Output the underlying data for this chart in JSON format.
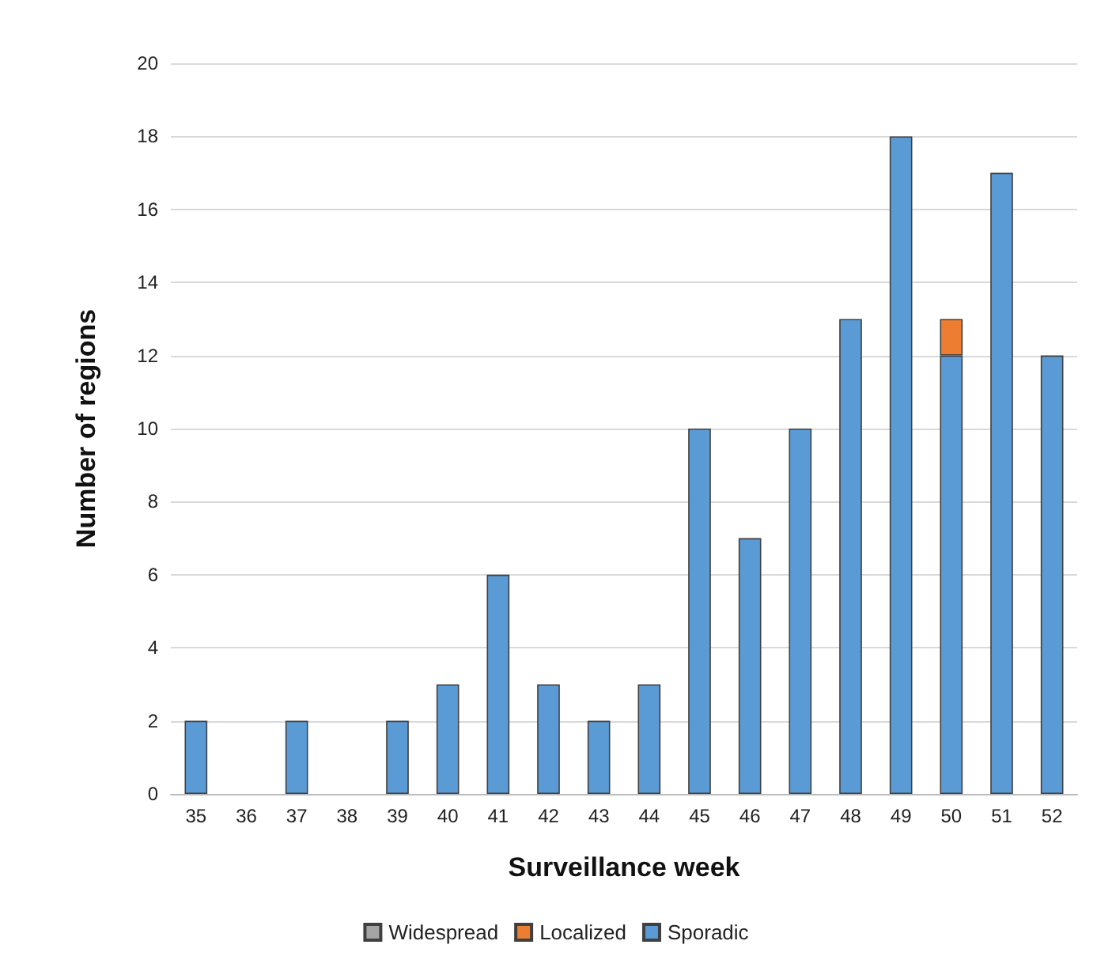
{
  "chart_data": {
    "type": "bar",
    "xlabel": "Surveillance week",
    "ylabel": "Number of regions",
    "categories": [
      "35",
      "36",
      "37",
      "38",
      "39",
      "40",
      "41",
      "42",
      "43",
      "44",
      "45",
      "46",
      "47",
      "48",
      "49",
      "50",
      "51",
      "52"
    ],
    "stacked": true,
    "series": [
      {
        "name": "Sporadic",
        "color": "#5b9bd5",
        "values": [
          2,
          0,
          2,
          0,
          2,
          3,
          6,
          3,
          2,
          3,
          10,
          7,
          10,
          13,
          18,
          12,
          17,
          12
        ]
      },
      {
        "name": "Localized",
        "color": "#ed7d31",
        "values": [
          0,
          0,
          0,
          0,
          0,
          0,
          0,
          0,
          0,
          0,
          0,
          0,
          0,
          0,
          0,
          1,
          0,
          0
        ]
      },
      {
        "name": "Widespread",
        "color": "#a5a5a5",
        "values": [
          0,
          0,
          0,
          0,
          0,
          0,
          0,
          0,
          0,
          0,
          0,
          0,
          0,
          0,
          0,
          0,
          0,
          0
        ]
      }
    ],
    "ylim": [
      0,
      20
    ],
    "yticks": [
      0,
      2,
      4,
      6,
      8,
      10,
      12,
      14,
      16,
      18,
      20
    ],
    "grid": "y",
    "legend": "bottom"
  }
}
